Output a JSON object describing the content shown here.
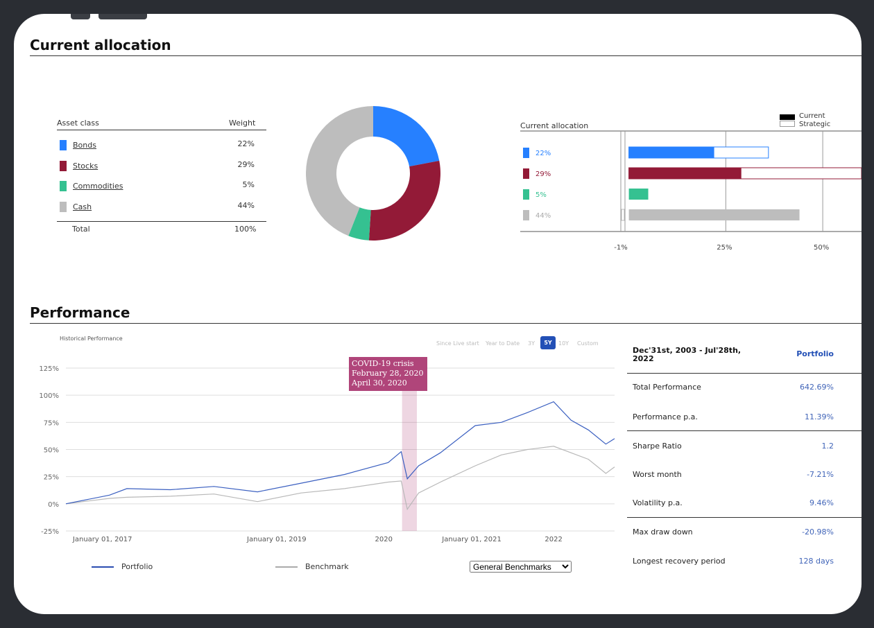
{
  "allocation": {
    "title": "Current allocation",
    "table": {
      "col_asset": "Asset class",
      "col_weight": "Weight",
      "rows": [
        {
          "name": "Bonds",
          "weight": "22%",
          "color": "#2680ff"
        },
        {
          "name": "Stocks",
          "weight": "29%",
          "color": "#931a37"
        },
        {
          "name": "Commodities",
          "weight": "5%",
          "color": "#35c191"
        },
        {
          "name": "Cash",
          "weight": "44%",
          "color": "#bdbdbd"
        }
      ],
      "total_label": "Total",
      "total_value": "100%"
    },
    "donut": {
      "values": [
        22,
        29,
        5,
        44
      ],
      "colors": [
        "#2680ff",
        "#931a37",
        "#35c191",
        "#bdbdbd"
      ]
    },
    "bars": {
      "title": "Current allocation",
      "legend_current": "Current",
      "legend_strategic": "Strategic",
      "x_ticks": [
        "-1%",
        "25%",
        "50%"
      ],
      "xlim": [
        -1,
        60
      ],
      "rows": [
        {
          "label": "22%",
          "current": 22,
          "strategic": 36,
          "color": "#2680ff"
        },
        {
          "label": "29%",
          "current": 29,
          "strategic": 60,
          "color": "#931a37"
        },
        {
          "label": "5%",
          "current": 5,
          "strategic": null,
          "color": "#35c191"
        },
        {
          "label": "44%",
          "current": 44,
          "strategic": null,
          "color": "#bdbdbd"
        }
      ]
    }
  },
  "performance": {
    "title": "Performance",
    "chart_label": "Historical Performance",
    "ranges": [
      "Since Live start",
      "Year to Date",
      "3Y",
      "5Y",
      "10Y",
      "Custom"
    ],
    "active_range": "5Y",
    "annotation": {
      "line1": "COVID-19 crisis",
      "line2": "February 28, 2020",
      "line3": "April 30, 2020"
    },
    "legend_portfolio": "Portfolio",
    "legend_benchmark": "Benchmark",
    "benchmark_select": "General Benchmarks",
    "stats_header_period": "Dec'31st, 2003 - Jul'28th, 2022",
    "stats_header_col": "Portfolio",
    "stats": [
      {
        "label": "Total Performance",
        "value": "642.69%"
      },
      {
        "label": "Performance p.a.",
        "value": "11.39%"
      },
      {
        "label": "Sharpe Ratio",
        "value": "1.2"
      },
      {
        "label": "Worst month",
        "value": "-7.21%"
      },
      {
        "label": "Volatility p.a.",
        "value": "9.46%"
      },
      {
        "label": "Max draw down",
        "value": "-20.98%"
      },
      {
        "label": "Longest recovery period",
        "value": "128 days"
      }
    ]
  },
  "chart_data": {
    "type": "line",
    "y_ticks": [
      "125%",
      "100%",
      "75%",
      "50%",
      "25%",
      "0%",
      "-25%"
    ],
    "ylim": [
      -25,
      125
    ],
    "x_ticks": [
      "January 01, 2017",
      "January 01, 2019",
      "2020",
      "January 01, 2021",
      "2022"
    ],
    "x": [
      2016.3,
      2016.8,
      2017.0,
      2017.5,
      2018.0,
      2018.5,
      2019.0,
      2019.5,
      2020.0,
      2020.15,
      2020.22,
      2020.35,
      2020.6,
      2021.0,
      2021.3,
      2021.6,
      2021.9,
      2022.1,
      2022.3,
      2022.5,
      2022.6
    ],
    "series": [
      {
        "name": "Portfolio",
        "color": "#3a5fc0",
        "values": [
          0,
          8,
          14,
          13,
          16,
          11,
          19,
          27,
          38,
          48,
          23,
          35,
          47,
          72,
          75,
          84,
          94,
          77,
          68,
          55,
          60
        ]
      },
      {
        "name": "Benchmark",
        "color": "#b8b8b8",
        "values": [
          0,
          5,
          6,
          7,
          9,
          2,
          10,
          14,
          20,
          21,
          -5,
          10,
          20,
          35,
          45,
          50,
          53,
          47,
          41,
          28,
          34
        ]
      }
    ],
    "highlight": {
      "from": 2020.16,
      "to": 2020.33
    }
  }
}
